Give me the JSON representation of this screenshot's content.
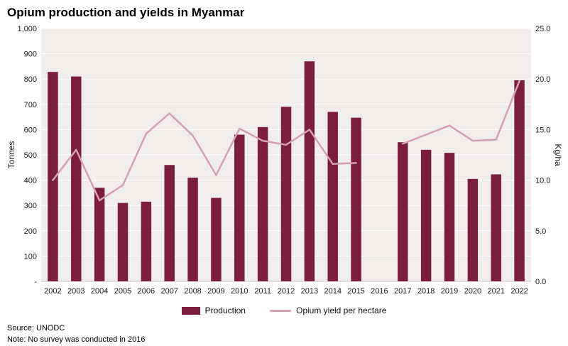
{
  "title": "Opium production and yields in Myanmar",
  "legend": {
    "production": "Production",
    "yield": "Opium yield per hectare"
  },
  "footer": {
    "source": "Source: UNODC",
    "note": "Note: No survey was conducted in 2016"
  },
  "colors": {
    "bar": "#7b1e3e",
    "line": "#d5a0b1",
    "plot_bg": "#f0edec",
    "grid": "#ffffff",
    "axis_text": "#1a1a1a",
    "baseline": "#c9c5c3"
  },
  "chart_data": {
    "type": "bar",
    "title": "Opium production and yields in Myanmar",
    "categories": [
      "2002",
      "2003",
      "2004",
      "2005",
      "2006",
      "2007",
      "2008",
      "2009",
      "2010",
      "2011",
      "2012",
      "2013",
      "2014",
      "2015",
      "2016",
      "2017",
      "2018",
      "2019",
      "2020",
      "2021",
      "2022"
    ],
    "series": [
      {
        "name": "Production",
        "type": "bar",
        "axis": "left",
        "unit": "tonnes",
        "values": [
          828,
          810,
          370,
          310,
          315,
          460,
          410,
          330,
          580,
          610,
          690,
          870,
          670,
          647,
          null,
          550,
          520,
          508,
          405,
          423,
          795
        ]
      },
      {
        "name": "Opium yield per hectare",
        "type": "line",
        "axis": "right",
        "unit": "kg/ha",
        "values": [
          10.0,
          13.0,
          8.0,
          9.5,
          14.6,
          16.6,
          14.4,
          10.5,
          15.1,
          13.9,
          13.5,
          15.0,
          11.6,
          11.7,
          null,
          13.6,
          14.5,
          15.4,
          13.9,
          14.0,
          19.8
        ]
      }
    ],
    "ylabel_left": "Tonnes",
    "ylabel_right": "Kg/ha",
    "ylim_left": [
      0,
      1000
    ],
    "ylim_right": [
      0,
      25
    ],
    "yticks_left": [
      "-",
      "100",
      "200",
      "300",
      "400",
      "500",
      "600",
      "700",
      "800",
      "900",
      "1,000"
    ],
    "yticks_right": [
      "0.0",
      "5.0",
      "10.0",
      "15.0",
      "20.0",
      "25.0"
    ],
    "grid": true,
    "legend_position": "bottom",
    "gap_year": "2016"
  }
}
